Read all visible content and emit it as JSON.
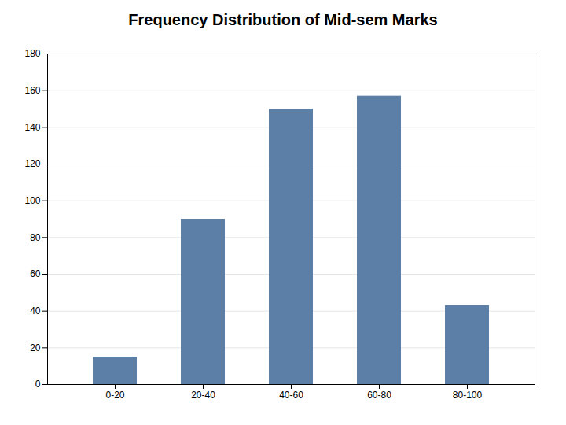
{
  "chart_data": {
    "type": "bar",
    "title": "Frequency Distribution of Mid-sem Marks",
    "categories": [
      "0-20",
      "20-40",
      "40-60",
      "60-80",
      "80-100"
    ],
    "values": [
      15,
      90,
      150,
      157,
      43
    ],
    "color": "#5B7FA6",
    "ylim": [
      0,
      180
    ],
    "yticks": [
      0,
      20,
      40,
      60,
      80,
      100,
      120,
      140,
      160,
      180
    ],
    "grid": true
  }
}
